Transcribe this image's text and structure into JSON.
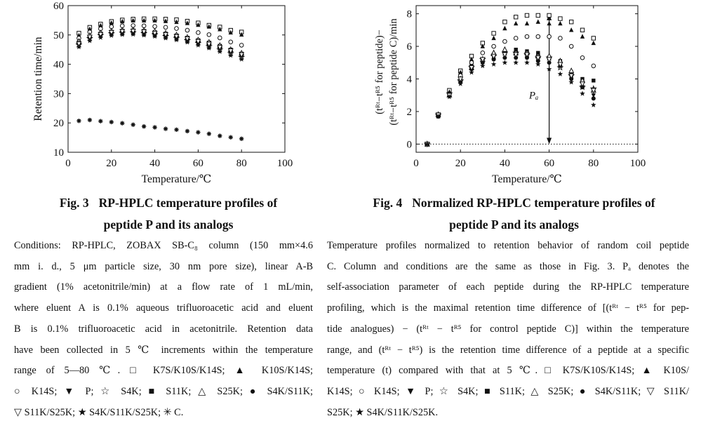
{
  "figures": [
    {
      "id": "fig3",
      "number": "Fig. 3",
      "title_line1": "RP-HPLC temperature profiles of",
      "title_line2": "peptide P and its analogs",
      "caption_lines": [
        "Conditions: RP-HPLC, ZOBAX SB-C₈ column (150 mm×4.6",
        "mm i. d., 5 μm particle size, 30 nm pore size), linear A-B",
        "gradient (1% acetonitrile/min) at a flow rate of 1 mL/min,",
        "where eluent A is 0.1% aqueous trifluoroacetic acid and eluent",
        "B is 0.1% trifluoroacetic acid in acetonitrile. Retention data",
        "have been collected in 5 ℃ increments within the temperature",
        "range of 5—80 ℃. □ K7S/K10S/K14S; ▲ K10S/K14S;",
        "○ K14S; ▼ P; ☆ S4K; ■ S11K; △ S25K; ● S4K/S11K;",
        "▽ S11K/S25K; ★ S4K/S11K/S25K; ✳ C."
      ]
    },
    {
      "id": "fig4",
      "number": "Fig. 4",
      "title_line1": "Normalized RP-HPLC temperature profiles of",
      "title_line2": "peptide P and its analogs",
      "caption_lines": [
        "Temperature profiles normalized to retention behavior of random coil peptide",
        "C. Column and conditions are the same as those in Fig. 3. Pₐ denotes the",
        "self-association parameter of each peptide during the RP-HPLC temperature",
        "profiling, which is the maximal retention time difference of [(tᴿᵗ − tᴿ⁵ for pep-",
        "tide analogues) − (tᴿᵗ − tᴿ⁵ for control peptide C)] within the temperature",
        "range, and (tᴿᵗ − tᴿ⁵) is the retention time difference of a peptide at a specific",
        "temperature (t) compared with that at 5 ℃. □ K7S/K10S/K14S; ▲ K10S/",
        "K14S; ○ K14S; ▼ P; ☆ S4K; ■ S11K; △ S25K; ● S4K/S11K; ▽ S11K/",
        "S25K; ★ S4K/S11K/S25K."
      ]
    }
  ],
  "chart_data": [
    {
      "type": "scatter",
      "title": "",
      "xlabel": "Temperature/℃",
      "ylabel": "Retention time/min",
      "xlim": [
        0,
        100
      ],
      "ylim": [
        10,
        60
      ],
      "xticks": [
        0,
        20,
        40,
        60,
        80,
        100
      ],
      "yticks": [
        10,
        20,
        30,
        40,
        50,
        60
      ],
      "x": [
        5,
        10,
        15,
        20,
        25,
        30,
        35,
        40,
        45,
        50,
        55,
        60,
        65,
        70,
        75,
        80
      ],
      "series": [
        {
          "name": "K7S/K10S/K14S",
          "marker": "square-open",
          "values": [
            50.6,
            52.6,
            53.7,
            54.6,
            55.1,
            55.4,
            55.5,
            55.5,
            55.4,
            55.2,
            54.7,
            54.1,
            53.3,
            52.7,
            51.6,
            51.0
          ]
        },
        {
          "name": "K10S/K14S",
          "marker": "triangle-filled",
          "values": [
            49.8,
            52.0,
            53.2,
            54.1,
            54.6,
            54.9,
            54.9,
            54.9,
            54.7,
            54.4,
            54.0,
            53.4,
            52.8,
            51.9,
            50.8,
            50.1
          ]
        },
        {
          "name": "K14S",
          "marker": "circle-open",
          "values": [
            48.9,
            51.0,
            52.1,
            52.8,
            53.1,
            53.2,
            53.1,
            52.9,
            52.6,
            52.2,
            51.6,
            50.8,
            50.1,
            49.0,
            47.6,
            46.5
          ]
        },
        {
          "name": "P",
          "marker": "triangle-down-filled",
          "values": [
            47.5,
            49.3,
            50.3,
            51.0,
            51.4,
            51.5,
            51.3,
            50.9,
            50.4,
            49.8,
            49.0,
            48.2,
            47.4,
            46.3,
            45.0,
            43.6
          ]
        },
        {
          "name": "S4K",
          "marker": "star-open",
          "values": [
            46.6,
            48.8,
            49.9,
            50.5,
            50.7,
            50.8,
            50.5,
            50.1,
            49.5,
            48.9,
            48.1,
            47.2,
            46.1,
            45.0,
            43.7,
            42.4
          ]
        },
        {
          "name": "S11K",
          "marker": "square-filled",
          "values": [
            47.4,
            49.4,
            50.5,
            51.1,
            51.4,
            51.5,
            51.3,
            50.9,
            50.4,
            49.8,
            49.0,
            48.1,
            47.2,
            46.1,
            44.9,
            43.6
          ]
        },
        {
          "name": "S25K",
          "marker": "triangle-open",
          "values": [
            47.8,
            49.8,
            50.7,
            51.3,
            51.6,
            51.7,
            51.6,
            51.2,
            50.6,
            50.0,
            49.2,
            48.3,
            47.5,
            46.4,
            45.0,
            43.8
          ]
        },
        {
          "name": "S4K/S11K",
          "marker": "circle-filled",
          "values": [
            47.2,
            49.1,
            50.1,
            50.7,
            51.0,
            51.0,
            50.8,
            50.3,
            49.8,
            49.2,
            48.3,
            47.5,
            46.6,
            45.5,
            44.3,
            43.0
          ]
        },
        {
          "name": "S11K/S25K",
          "marker": "triangle-down-open",
          "values": [
            47.0,
            49.3,
            50.2,
            50.9,
            51.2,
            51.3,
            51.1,
            50.6,
            50.1,
            49.5,
            48.7,
            47.8,
            46.9,
            45.8,
            44.6,
            43.3
          ]
        },
        {
          "name": "S4K/S11K/S25K",
          "marker": "star-filled",
          "values": [
            45.9,
            48.0,
            49.1,
            49.8,
            50.1,
            50.2,
            49.9,
            49.5,
            48.9,
            48.3,
            47.5,
            46.5,
            45.5,
            44.3,
            43.0,
            41.7
          ]
        },
        {
          "name": "C",
          "marker": "asterisk",
          "values": [
            20.7,
            21.0,
            20.6,
            20.3,
            19.9,
            19.4,
            18.8,
            18.5,
            18.0,
            17.7,
            17.2,
            16.8,
            16.3,
            15.6,
            15.1,
            14.6
          ]
        }
      ]
    },
    {
      "type": "scatter",
      "title": "",
      "xlabel": "Temperature/℃",
      "ylabel_line1": "(tᴿᵗ−tᴿ⁵ for peptide)−",
      "ylabel_line2": "(tᴿᵗ−tᴿ⁵ for peptide C)/min",
      "xlim": [
        0,
        100
      ],
      "ylim": [
        -0.5,
        8.5
      ],
      "xticks": [
        0,
        20,
        40,
        60,
        80,
        100
      ],
      "yticks": [
        0,
        2,
        4,
        6,
        8
      ],
      "annotation": {
        "label": "Pₐ",
        "x": 60,
        "y_from": 7.9,
        "y_to": 0
      },
      "x": [
        5,
        10,
        15,
        20,
        25,
        30,
        35,
        40,
        45,
        50,
        55,
        60,
        65,
        70,
        75,
        80
      ],
      "series": [
        {
          "name": "K7S/K10S/K14S",
          "marker": "square-open",
          "values": [
            0,
            1.8,
            3.3,
            4.5,
            5.4,
            6.2,
            6.8,
            7.5,
            7.8,
            7.9,
            7.9,
            7.9,
            7.7,
            7.5,
            7.0,
            6.5
          ]
        },
        {
          "name": "K10S/K14S",
          "marker": "triangle-filled",
          "values": [
            0,
            1.8,
            3.2,
            4.4,
            5.2,
            6.0,
            6.5,
            7.1,
            7.4,
            7.4,
            7.5,
            7.4,
            7.4,
            7.0,
            6.6,
            6.2
          ]
        },
        {
          "name": "K14S",
          "marker": "circle-open",
          "values": [
            0,
            1.8,
            3.1,
            4.2,
            5.0,
            5.6,
            6.0,
            6.3,
            6.5,
            6.6,
            6.6,
            6.6,
            6.5,
            6.0,
            5.3,
            4.8
          ]
        },
        {
          "name": "P",
          "marker": "triangle-down-filled",
          "values": [
            0,
            1.7,
            3.0,
            3.8,
            4.6,
            5.0,
            5.4,
            5.5,
            5.6,
            5.5,
            5.4,
            5.3,
            4.9,
            4.1,
            3.5,
            3.0
          ]
        },
        {
          "name": "S4K",
          "marker": "star-open",
          "values": [
            0,
            1.8,
            3.1,
            3.9,
            4.7,
            5.2,
            5.4,
            5.6,
            5.6,
            5.5,
            5.3,
            5.3,
            4.7,
            4.2,
            3.5,
            3.4
          ]
        },
        {
          "name": "S11K",
          "marker": "square-filled",
          "values": [
            0,
            1.7,
            3.1,
            4.0,
            4.8,
            5.1,
            5.5,
            5.6,
            5.8,
            5.7,
            5.6,
            5.3,
            5.1,
            4.4,
            4.0,
            3.9
          ]
        },
        {
          "name": "S25K",
          "marker": "triangle-open",
          "values": [
            0,
            1.8,
            3.0,
            4.0,
            4.7,
            5.2,
            5.6,
            5.8,
            5.6,
            5.6,
            5.4,
            5.4,
            5.1,
            4.5,
            3.9,
            3.3
          ]
        },
        {
          "name": "S4K/S11K",
          "marker": "circle-filled",
          "values": [
            0,
            1.7,
            3.0,
            3.8,
            4.6,
            5.0,
            5.2,
            5.3,
            5.3,
            5.3,
            5.1,
            5.0,
            4.8,
            4.0,
            3.5,
            2.8
          ]
        },
        {
          "name": "S11K/S25K",
          "marker": "triangle-down-open",
          "values": [
            0,
            1.8,
            3.0,
            4.0,
            4.7,
            5.2,
            5.4,
            5.5,
            5.5,
            5.5,
            5.3,
            5.2,
            4.9,
            4.2,
            3.7,
            3.3
          ]
        },
        {
          "name": "S4K/S11K/S25K",
          "marker": "star-filled",
          "values": [
            0,
            1.7,
            2.9,
            3.7,
            4.4,
            4.8,
            4.9,
            5.0,
            5.0,
            5.0,
            4.9,
            4.6,
            4.3,
            3.8,
            3.1,
            2.4
          ]
        }
      ]
    }
  ]
}
